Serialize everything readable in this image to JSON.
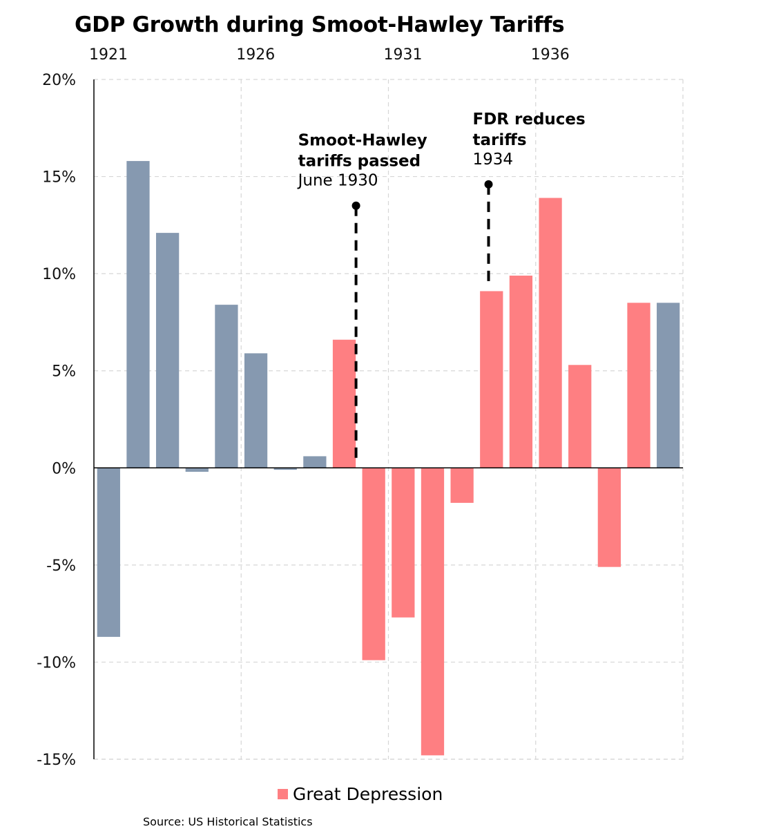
{
  "chart_data": {
    "type": "bar",
    "title": "GDP Growth during Smoot-Hawley Tariffs",
    "x_tick_labels": [
      "1921",
      "1926",
      "1931",
      "1936"
    ],
    "y_tick_labels": [
      "20%",
      "15%",
      "10%",
      "5%",
      "0%",
      "-5%",
      "-10%",
      "-15%"
    ],
    "ylim": [
      -15,
      20
    ],
    "xlim": [
      1921,
      1941
    ],
    "grid": true,
    "x_axis_position": "top",
    "categories": [
      1921,
      1922,
      1923,
      1924,
      1925,
      1926,
      1927,
      1928,
      1929,
      1930,
      1931,
      1932,
      1933,
      1934,
      1935,
      1936,
      1937,
      1938,
      1939,
      1940
    ],
    "values": [
      -8.7,
      15.8,
      12.1,
      -0.2,
      8.4,
      5.9,
      -0.1,
      0.6,
      6.6,
      -9.9,
      -7.7,
      -14.8,
      -1.8,
      9.1,
      9.9,
      13.9,
      5.3,
      -5.1,
      8.5,
      8.5
    ],
    "highlight": [
      false,
      false,
      false,
      false,
      false,
      false,
      false,
      false,
      true,
      true,
      true,
      true,
      true,
      true,
      true,
      true,
      true,
      true,
      true,
      false
    ],
    "colors": {
      "default": "#8699b0",
      "highlight": "#fe7f82"
    },
    "legend": {
      "label": "Great Depression",
      "color": "#fe7f82",
      "placement": "bottom-center"
    },
    "annotations": [
      {
        "title_lines": [
          "Smoot-Hawley",
          "tariffs passed"
        ],
        "subtitle": "June 1930",
        "x": 1929.9,
        "y_top": 13.5,
        "y_bottom": 0.3
      },
      {
        "title_lines": [
          "FDR reduces",
          "tariffs"
        ],
        "subtitle": "1934",
        "x": 1934.4,
        "y_top": 14.6,
        "y_bottom": 9.6
      }
    ],
    "source": "Source: US Historical Statistics"
  }
}
